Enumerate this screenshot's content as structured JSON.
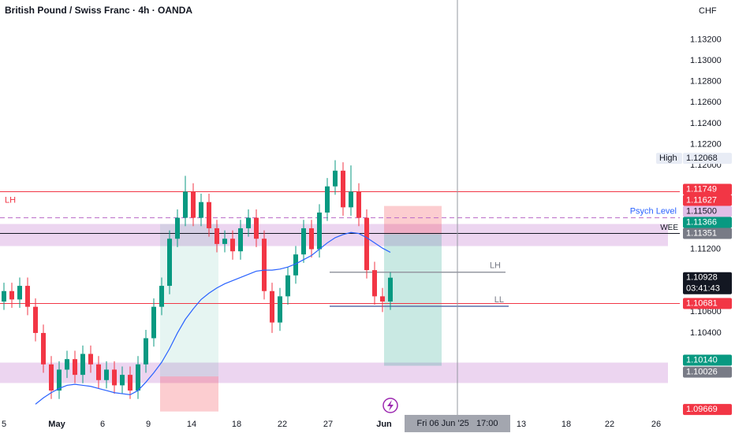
{
  "chart_data": {
    "type": "candlestick",
    "title": "British Pound / Swiss Franc · 4h · OANDA",
    "currency": "CHF",
    "xlim": [
      -0.5,
      85.7
    ],
    "ylim": [
      1.0961,
      1.1358
    ],
    "xticks": [
      {
        "value": 0,
        "label": "5"
      },
      {
        "value": 6.7,
        "label": "May"
      },
      {
        "value": 12.5,
        "label": "6"
      },
      {
        "value": 18.3,
        "label": "9"
      },
      {
        "value": 23.8,
        "label": "14"
      },
      {
        "value": 29.5,
        "label": "18"
      },
      {
        "value": 35.3,
        "label": "22"
      },
      {
        "value": 41.1,
        "label": "27"
      },
      {
        "value": 48.2,
        "label": "Jun"
      },
      {
        "value": 65.6,
        "label": "13"
      },
      {
        "value": 71.3,
        "label": "18"
      },
      {
        "value": 76.8,
        "label": "22"
      },
      {
        "value": 82.7,
        "label": "26"
      }
    ],
    "yticks": [
      {
        "value": 1.132,
        "label": "1.13200"
      },
      {
        "value": 1.13,
        "label": "1.13000"
      },
      {
        "value": 1.128,
        "label": "1.12800"
      },
      {
        "value": 1.126,
        "label": "1.12600"
      },
      {
        "value": 1.124,
        "label": "1.12400"
      },
      {
        "value": 1.122,
        "label": "1.12200"
      },
      {
        "value": 1.12,
        "label": "1.12000"
      },
      {
        "value": 1.112,
        "label": "1.11200"
      },
      {
        "value": 1.106,
        "label": "1.10600"
      },
      {
        "value": 1.104,
        "label": "1.10400"
      }
    ],
    "up_color": "#089981",
    "down_color": "#f23645",
    "open": [
      1.107,
      1.108,
      1.1072,
      1.1085,
      1.1065,
      1.104,
      1.101,
      1.0985,
      1.1005,
      1.1015,
      1.1,
      1.102,
      1.101,
      1.0995,
      1.1005,
      1.099,
      1.1,
      1.0985,
      1.101,
      1.1035,
      1.1065,
      1.1085,
      1.113,
      1.115,
      1.1175,
      1.115,
      1.1165,
      1.114,
      1.1125,
      1.113,
      1.1118,
      1.114,
      1.115,
      1.113,
      1.108,
      1.105,
      1.1075,
      1.1095,
      1.1115,
      1.114,
      1.112,
      1.1155,
      1.118,
      1.1195,
      1.116,
      1.1175,
      1.115,
      1.11,
      1.1075,
      1.107
    ],
    "high": [
      1.1088,
      1.1088,
      1.1093,
      1.1093,
      1.1073,
      1.1048,
      1.1018,
      1.1013,
      1.1023,
      1.1023,
      1.1028,
      1.1028,
      1.1018,
      1.1013,
      1.1013,
      1.1008,
      1.1008,
      1.1018,
      1.1043,
      1.1073,
      1.1093,
      1.1138,
      1.1158,
      1.119,
      1.1183,
      1.1173,
      1.1173,
      1.1148,
      1.1138,
      1.1138,
      1.1148,
      1.1158,
      1.1158,
      1.1138,
      1.1088,
      1.1083,
      1.1103,
      1.1123,
      1.1148,
      1.1148,
      1.1163,
      1.1188,
      1.1205,
      1.1203,
      1.12,
      1.1183,
      1.1158,
      1.1108,
      1.1083,
      1.1098
    ],
    "low": [
      1.1062,
      1.1064,
      1.1064,
      1.1057,
      1.1032,
      1.1002,
      1.0977,
      1.0977,
      1.0997,
      1.0992,
      1.0992,
      1.1002,
      1.0987,
      1.0987,
      1.0982,
      1.0982,
      1.0977,
      1.0977,
      1.1002,
      1.1027,
      1.1057,
      1.1077,
      1.1122,
      1.1142,
      1.1142,
      1.1142,
      1.1132,
      1.1117,
      1.1117,
      1.111,
      1.111,
      1.1132,
      1.1122,
      1.1072,
      1.104,
      1.1042,
      1.1067,
      1.1087,
      1.1107,
      1.1112,
      1.1112,
      1.1147,
      1.1172,
      1.1152,
      1.1152,
      1.1142,
      1.1092,
      1.1067,
      1.106,
      1.1062
    ],
    "close": [
      1.108,
      1.1072,
      1.1085,
      1.1065,
      1.104,
      1.101,
      1.0985,
      1.1005,
      1.1015,
      1.1,
      1.102,
      1.101,
      1.0995,
      1.1005,
      1.099,
      1.1,
      1.0985,
      1.101,
      1.1035,
      1.1065,
      1.1085,
      1.113,
      1.115,
      1.1175,
      1.115,
      1.1165,
      1.114,
      1.1125,
      1.113,
      1.1118,
      1.114,
      1.115,
      1.113,
      1.108,
      1.105,
      1.1075,
      1.1095,
      1.1115,
      1.114,
      1.112,
      1.1155,
      1.118,
      1.1195,
      1.116,
      1.1175,
      1.115,
      1.11,
      1.1075,
      1.107,
      1.10928
    ],
    "moving_average": {
      "color": "#2962ff",
      "values": [
        null,
        null,
        null,
        null,
        1.0972,
        1.0978,
        1.0983,
        1.0987,
        1.099,
        1.0991,
        1.099,
        1.0989,
        1.0987,
        1.0985,
        1.0983,
        1.0982,
        1.0981,
        1.0985,
        1.0993,
        1.1002,
        1.1012,
        1.1025,
        1.104,
        1.1053,
        1.1063,
        1.1072,
        1.1078,
        1.1083,
        1.1087,
        1.109,
        1.1093,
        1.1096,
        1.1099,
        1.11,
        1.11,
        1.1101,
        1.1103,
        1.1106,
        1.111,
        1.1114,
        1.112,
        1.1126,
        1.1131,
        1.1134,
        1.1136,
        1.1135,
        1.1131,
        1.1126,
        1.1121,
        1.1117
      ]
    },
    "zones": [
      {
        "from": 1.11441,
        "to": 1.1123,
        "color": "rgba(186,104,200,0.28)"
      },
      {
        "from": 1.10117,
        "to": 1.09922,
        "color": "rgba(186,104,200,0.28)"
      }
    ],
    "boxes": [
      {
        "x": [
          19.8,
          27.2
        ],
        "from": 1.11441,
        "to": 1.09985,
        "color": "rgba(8,153,129,0.10)"
      },
      {
        "x": [
          19.8,
          27.2
        ],
        "from": 1.09985,
        "to": 1.0965,
        "color": "rgba(242,54,69,0.25)"
      },
      {
        "x": [
          48.2,
          55.5
        ],
        "from": 1.11613,
        "to": 1.11343,
        "color": "rgba(242,54,69,0.25)"
      },
      {
        "x": [
          48.2,
          55.5
        ],
        "from": 1.11343,
        "to": 1.10087,
        "color": "rgba(8,153,129,0.22)"
      }
    ],
    "levels": [
      {
        "value": 1.11749,
        "label": "LH",
        "color": "#f23645",
        "style": "solid"
      },
      {
        "value": 1.10681,
        "color": "#f23645",
        "style": "solid"
      },
      {
        "value": 1.115,
        "color": "#ba68c8",
        "style": "dashed"
      },
      {
        "value": 1.11351,
        "label": "WEE",
        "color": "#131722",
        "style": "solid"
      }
    ],
    "segments": [
      {
        "value": 1.1098,
        "label": "LH",
        "x": [
          41.3,
          63.6
        ],
        "color": "#9598a1"
      },
      {
        "value": 1.10655,
        "label": "LL",
        "x": [
          41.3,
          64.0
        ],
        "color": "#5b6fa8"
      }
    ],
    "crosshair": {
      "x": 57.5,
      "label": "Fri 06 Jun '25   17:00"
    },
    "price_tags": [
      {
        "value": 1.12068,
        "label": "1.12068",
        "tag": "High",
        "bg": "#e8ecf5",
        "fg": "#131722"
      },
      {
        "value": 1.11749,
        "label": "1.11749",
        "bg": "#f23645",
        "fg": "#ffffff"
      },
      {
        "value": 1.11627,
        "label": "1.11627",
        "bg": "#f23645",
        "fg": "#ffffff"
      },
      {
        "value": 1.115,
        "label": "1.11500",
        "tag": "Psych Level",
        "bg": "#e1bee7",
        "fg": "#131722"
      },
      {
        "value": 1.11366,
        "label": "1.11366",
        "bg": "#089981",
        "fg": "#ffffff"
      },
      {
        "value": 1.11351,
        "label": "1.11351",
        "bg": "#787b86",
        "fg": "#ffffff"
      },
      {
        "value": 1.10928,
        "label": "1.10928",
        "countdown": "03:41:43",
        "bg": "#131722",
        "fg": "#ffffff"
      },
      {
        "value": 1.10681,
        "label": "1.10681",
        "bg": "#f23645",
        "fg": "#ffffff"
      },
      {
        "value": 1.1014,
        "label": "1.10140",
        "bg": "#089981",
        "fg": "#ffffff"
      },
      {
        "value": 1.10026,
        "label": "1.10026",
        "bg": "#787b86",
        "fg": "#ffffff"
      },
      {
        "value": 1.09669,
        "label": "1.09669",
        "bg": "#f23645",
        "fg": "#ffffff"
      }
    ]
  }
}
